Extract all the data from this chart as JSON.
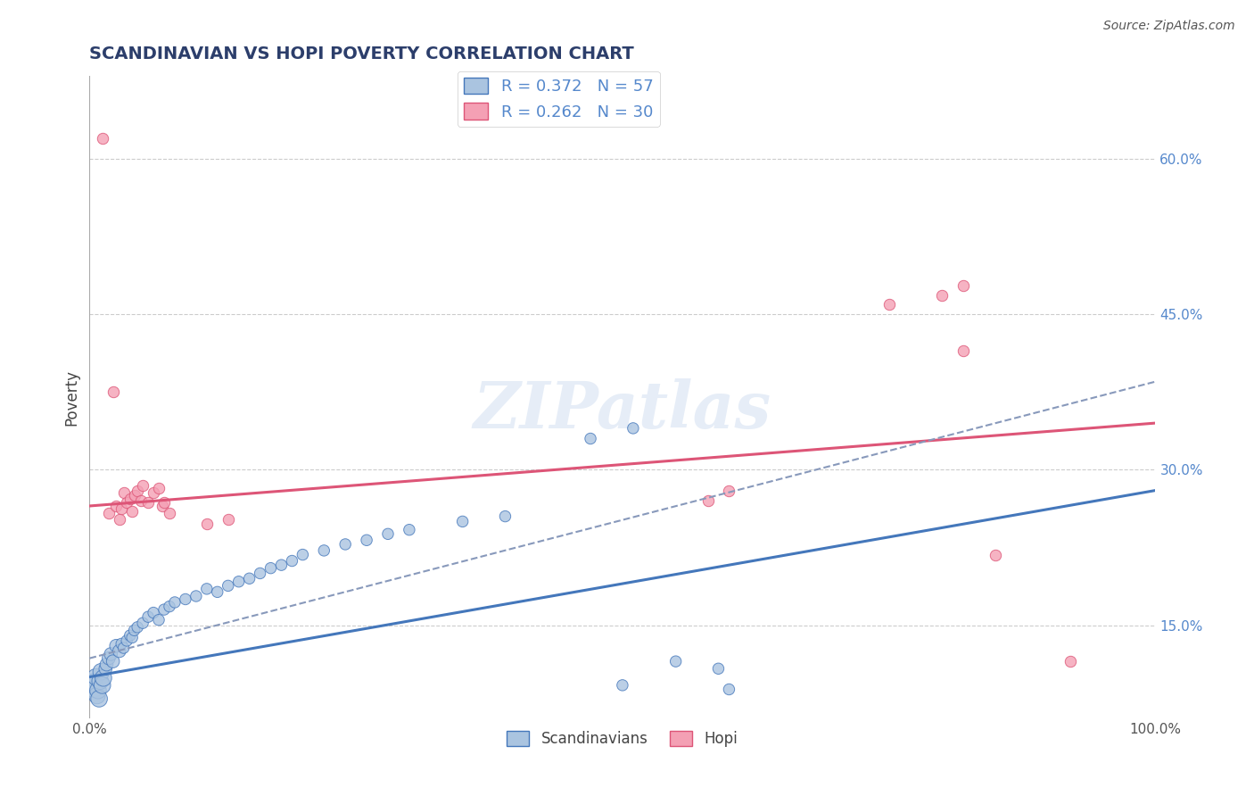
{
  "title": "SCANDINAVIAN VS HOPI POVERTY CORRELATION CHART",
  "source": "Source: ZipAtlas.com",
  "xlabel": "",
  "ylabel": "Poverty",
  "xlim": [
    0.0,
    1.0
  ],
  "ylim": [
    0.06,
    0.68
  ],
  "ytick_positions": [
    0.15,
    0.3,
    0.45,
    0.6
  ],
  "ytick_labels": [
    "15.0%",
    "30.0%",
    "45.0%",
    "60.0%"
  ],
  "scandinavian_color": "#aac4e0",
  "hopi_color": "#f4a0b4",
  "trend_scandinavian_color": "#4477bb",
  "trend_hopi_color": "#dd5577",
  "r_scandinavian": 0.372,
  "n_scandinavian": 57,
  "r_hopi": 0.262,
  "n_hopi": 30,
  "watermark": "ZIPatlas",
  "background_color": "#ffffff",
  "grid_color": "#cccccc",
  "scandinavian_points": [
    [
      0.003,
      0.095
    ],
    [
      0.004,
      0.088
    ],
    [
      0.005,
      0.093
    ],
    [
      0.006,
      0.1
    ],
    [
      0.007,
      0.082
    ],
    [
      0.008,
      0.087
    ],
    [
      0.009,
      0.079
    ],
    [
      0.01,
      0.096
    ],
    [
      0.011,
      0.105
    ],
    [
      0.012,
      0.092
    ],
    [
      0.013,
      0.099
    ],
    [
      0.015,
      0.108
    ],
    [
      0.016,
      0.112
    ],
    [
      0.018,
      0.118
    ],
    [
      0.02,
      0.122
    ],
    [
      0.022,
      0.115
    ],
    [
      0.025,
      0.13
    ],
    [
      0.028,
      0.125
    ],
    [
      0.03,
      0.132
    ],
    [
      0.032,
      0.128
    ],
    [
      0.035,
      0.135
    ],
    [
      0.038,
      0.14
    ],
    [
      0.04,
      0.138
    ],
    [
      0.042,
      0.145
    ],
    [
      0.045,
      0.148
    ],
    [
      0.05,
      0.152
    ],
    [
      0.055,
      0.158
    ],
    [
      0.06,
      0.162
    ],
    [
      0.065,
      0.155
    ],
    [
      0.07,
      0.165
    ],
    [
      0.075,
      0.168
    ],
    [
      0.08,
      0.172
    ],
    [
      0.09,
      0.175
    ],
    [
      0.1,
      0.178
    ],
    [
      0.11,
      0.185
    ],
    [
      0.12,
      0.182
    ],
    [
      0.13,
      0.188
    ],
    [
      0.14,
      0.192
    ],
    [
      0.15,
      0.195
    ],
    [
      0.16,
      0.2
    ],
    [
      0.17,
      0.205
    ],
    [
      0.18,
      0.208
    ],
    [
      0.19,
      0.212
    ],
    [
      0.2,
      0.218
    ],
    [
      0.22,
      0.222
    ],
    [
      0.24,
      0.228
    ],
    [
      0.26,
      0.232
    ],
    [
      0.28,
      0.238
    ],
    [
      0.3,
      0.242
    ],
    [
      0.35,
      0.25
    ],
    [
      0.39,
      0.255
    ],
    [
      0.47,
      0.33
    ],
    [
      0.51,
      0.34
    ],
    [
      0.55,
      0.115
    ],
    [
      0.59,
      0.108
    ],
    [
      0.5,
      0.092
    ],
    [
      0.6,
      0.088
    ]
  ],
  "hopi_points": [
    [
      0.012,
      0.62
    ],
    [
      0.018,
      0.258
    ],
    [
      0.022,
      0.375
    ],
    [
      0.025,
      0.265
    ],
    [
      0.028,
      0.252
    ],
    [
      0.03,
      0.262
    ],
    [
      0.032,
      0.278
    ],
    [
      0.035,
      0.268
    ],
    [
      0.038,
      0.272
    ],
    [
      0.04,
      0.26
    ],
    [
      0.042,
      0.275
    ],
    [
      0.045,
      0.28
    ],
    [
      0.048,
      0.27
    ],
    [
      0.05,
      0.285
    ],
    [
      0.055,
      0.268
    ],
    [
      0.06,
      0.278
    ],
    [
      0.065,
      0.282
    ],
    [
      0.068,
      0.265
    ],
    [
      0.07,
      0.268
    ],
    [
      0.075,
      0.258
    ],
    [
      0.11,
      0.248
    ],
    [
      0.13,
      0.252
    ],
    [
      0.58,
      0.27
    ],
    [
      0.6,
      0.28
    ],
    [
      0.75,
      0.46
    ],
    [
      0.8,
      0.468
    ],
    [
      0.82,
      0.478
    ],
    [
      0.82,
      0.415
    ],
    [
      0.85,
      0.218
    ],
    [
      0.92,
      0.115
    ]
  ],
  "trend_sc_x0": 0.0,
  "trend_sc_y0": 0.1,
  "trend_sc_x1": 1.0,
  "trend_sc_y1": 0.28,
  "trend_hopi_x0": 0.0,
  "trend_hopi_y0": 0.265,
  "trend_hopi_x1": 1.0,
  "trend_hopi_y1": 0.345,
  "trend_dash_x0": 0.0,
  "trend_dash_y0": 0.118,
  "trend_dash_x1": 1.0,
  "trend_dash_y1": 0.385
}
